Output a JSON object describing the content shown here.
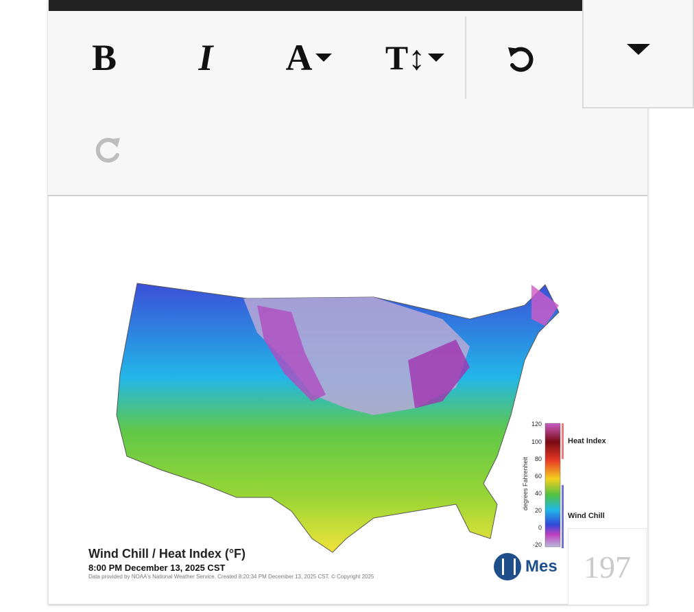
{
  "toolbar": {
    "bold_label": "B",
    "italic_label": "I",
    "color_label": "A",
    "size_label": "T↕",
    "icons": [
      "bold-icon",
      "italic-icon",
      "font-color-icon",
      "font-size-icon",
      "undo-icon",
      "redo-icon",
      "chevron-down-icon"
    ]
  },
  "map": {
    "title": "Wind Chill / Heat Index (°F)",
    "time": "8:00 PM December 13, 2025 CST",
    "credit": "Data provided by NOAA's National Weather Service. Created 8:20:34 PM December 13, 2025 CST. © Copyright 2025",
    "brand": "Mes",
    "legend": {
      "axis_label": "degrees Fahrenheit",
      "ticks": [
        "120",
        "100",
        "80",
        "60",
        "40",
        "20",
        "0",
        "-20"
      ],
      "heat_label": "Heat Index",
      "chill_label": "Wind Chill"
    },
    "colors": {
      "brand": "#1f4f8a",
      "heat": "#f07a7a",
      "chill": "#6f72d6"
    }
  },
  "counter": "197"
}
